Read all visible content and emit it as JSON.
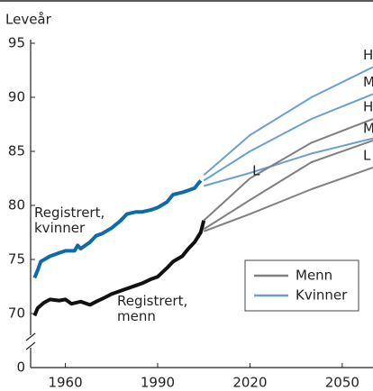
{
  "chart_data": {
    "type": "line",
    "y_axis_label": "Leveår",
    "xlim": [
      1949,
      2060
    ],
    "xticks": [
      1960,
      1990,
      2020,
      2050
    ],
    "ylim": [
      70,
      95
    ],
    "yticks": [
      70,
      75,
      80,
      85,
      90,
      95
    ],
    "y_break_tick": 0,
    "series": [
      {
        "name": "Registrert, kvinner",
        "color": "#0f6aa8",
        "width": 4,
        "x": [
          1950,
          1951,
          1952,
          1955,
          1958,
          1960,
          1963,
          1964,
          1965,
          1968,
          1970,
          1972,
          1975,
          1978,
          1980,
          1983,
          1985,
          1988,
          1990,
          1993,
          1995,
          1998,
          2000,
          2002,
          2004
        ],
        "values": [
          73.3,
          74.0,
          74.8,
          75.3,
          75.6,
          75.8,
          75.8,
          76.3,
          76.0,
          76.6,
          77.2,
          77.4,
          77.9,
          78.6,
          79.2,
          79.4,
          79.4,
          79.6,
          79.8,
          80.3,
          81.0,
          81.2,
          81.4,
          81.6,
          82.3
        ]
      },
      {
        "name": "Registrert, menn",
        "color": "#111111",
        "width": 4,
        "x": [
          1950,
          1951,
          1953,
          1955,
          1958,
          1960,
          1962,
          1965,
          1968,
          1970,
          1973,
          1975,
          1978,
          1980,
          1983,
          1985,
          1988,
          1990,
          1993,
          1995,
          1998,
          2000,
          2002,
          2004,
          2005
        ],
        "values": [
          69.8,
          70.5,
          71.0,
          71.3,
          71.2,
          71.3,
          70.9,
          71.1,
          70.8,
          71.1,
          71.5,
          71.8,
          72.1,
          72.3,
          72.6,
          72.8,
          73.2,
          73.4,
          74.2,
          74.8,
          75.3,
          76.0,
          76.6,
          77.5,
          78.6
        ]
      },
      {
        "label": "H",
        "color": "#6c9fd0",
        "width": 2,
        "x": [
          2005,
          2020,
          2040,
          2060
        ],
        "values": [
          82.8,
          86.5,
          90.0,
          92.8
        ]
      },
      {
        "label": "M",
        "color": "#6c9fd0",
        "width": 2,
        "x": [
          2005,
          2020,
          2040,
          2060
        ],
        "values": [
          82.3,
          85.0,
          88.0,
          90.3
        ]
      },
      {
        "label": "L",
        "color": "#6c9fd0",
        "width": 2,
        "x": [
          2005,
          2020,
          2040,
          2060
        ],
        "values": [
          81.8,
          83.0,
          84.8,
          86.2
        ]
      },
      {
        "label": "H",
        "color": "#808080",
        "width": 2,
        "x": [
          2005,
          2020,
          2040,
          2060
        ],
        "values": [
          78.6,
          82.5,
          85.8,
          88.0
        ]
      },
      {
        "label": "M",
        "color": "#808080",
        "width": 2,
        "x": [
          2005,
          2020,
          2040,
          2060
        ],
        "values": [
          77.8,
          80.5,
          84.0,
          86.0
        ]
      },
      {
        "label": "L",
        "color": "#808080",
        "width": 2,
        "x": [
          2005,
          2020,
          2040,
          2060
        ],
        "values": [
          77.6,
          79.2,
          81.5,
          83.5
        ]
      }
    ],
    "legend": [
      {
        "name": "Menn",
        "color": "#808080"
      },
      {
        "name": "Kvinner",
        "color": "#6c9fd0"
      }
    ]
  }
}
